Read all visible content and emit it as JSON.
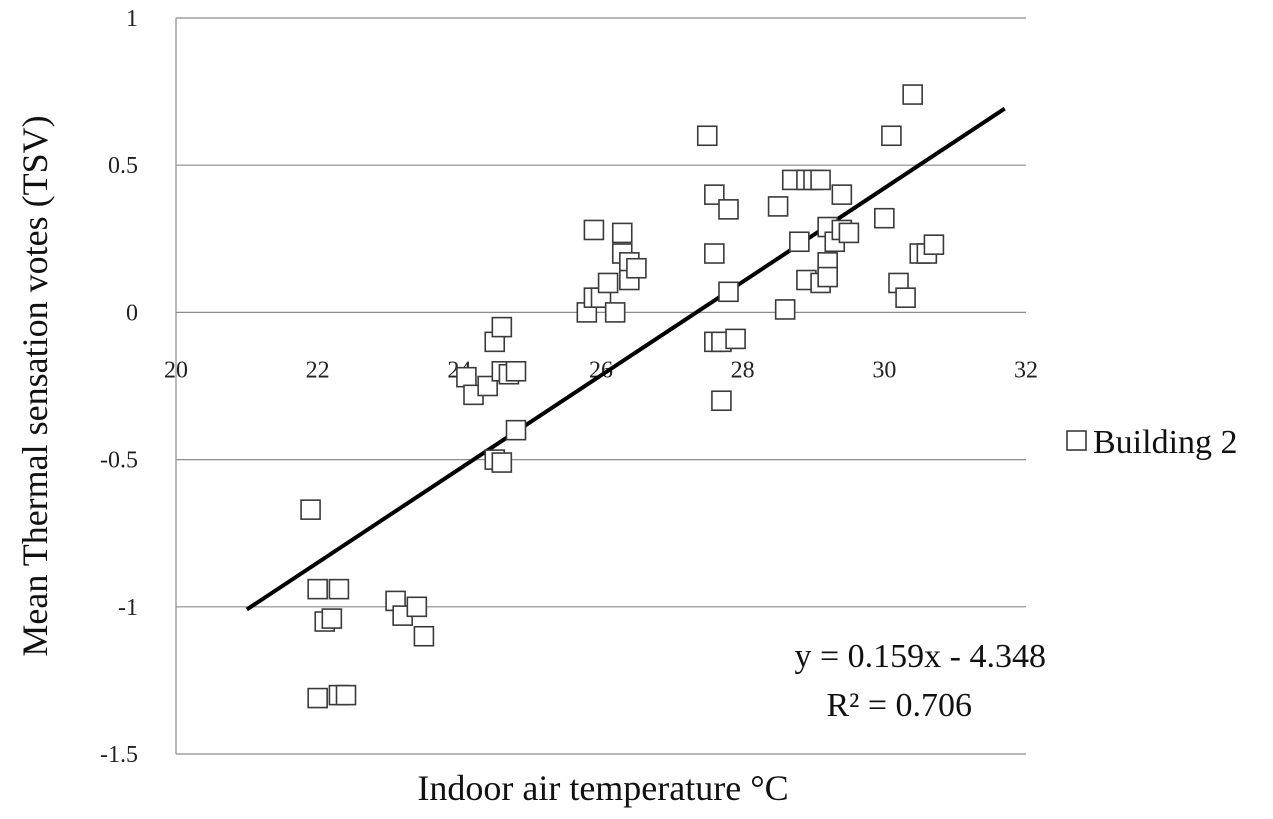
{
  "chart_data": {
    "type": "scatter",
    "title": "",
    "xlabel": "Indoor air temperature °C",
    "ylabel": "Mean Thermal sensation votes (TSV)",
    "xlim": [
      20,
      32
    ],
    "ylim": [
      -1.5,
      1
    ],
    "x_ticks": [
      "20",
      "22",
      "24",
      "26",
      "28",
      "30",
      "32"
    ],
    "y_ticks": [
      "1",
      "0.5",
      "0",
      "-0.5",
      "-1",
      "-1.5"
    ],
    "grid": true,
    "legend_position": "right",
    "series": [
      {
        "name": "Building 2",
        "marker": "open-square",
        "color": "#3a3a3a",
        "points": [
          [
            21.9,
            -0.67
          ],
          [
            22.0,
            -0.94
          ],
          [
            22.3,
            -0.94
          ],
          [
            22.1,
            -1.05
          ],
          [
            22.2,
            -1.04
          ],
          [
            22.0,
            -1.31
          ],
          [
            22.3,
            -1.3
          ],
          [
            22.4,
            -1.3
          ],
          [
            23.1,
            -0.98
          ],
          [
            23.2,
            -1.03
          ],
          [
            23.4,
            -1.0
          ],
          [
            23.5,
            -1.1
          ],
          [
            24.1,
            -0.22
          ],
          [
            24.2,
            -0.28
          ],
          [
            24.4,
            -0.25
          ],
          [
            24.5,
            -0.1
          ],
          [
            24.6,
            -0.05
          ],
          [
            24.6,
            -0.2
          ],
          [
            24.7,
            -0.21
          ],
          [
            24.8,
            -0.2
          ],
          [
            24.8,
            -0.4
          ],
          [
            24.5,
            -0.5
          ],
          [
            24.6,
            -0.51
          ],
          [
            25.8,
            0.0
          ],
          [
            25.9,
            0.28
          ],
          [
            25.9,
            0.05
          ],
          [
            26.0,
            0.05
          ],
          [
            26.1,
            0.1
          ],
          [
            26.2,
            0.0
          ],
          [
            26.3,
            0.27
          ],
          [
            26.3,
            0.2
          ],
          [
            26.4,
            0.17
          ],
          [
            26.4,
            0.11
          ],
          [
            26.5,
            0.15
          ],
          [
            27.5,
            0.6
          ],
          [
            27.6,
            0.4
          ],
          [
            27.6,
            0.2
          ],
          [
            27.6,
            -0.1
          ],
          [
            27.7,
            -0.1
          ],
          [
            27.7,
            -0.3
          ],
          [
            27.8,
            0.35
          ],
          [
            27.8,
            0.07
          ],
          [
            27.9,
            -0.09
          ],
          [
            28.5,
            0.36
          ],
          [
            28.6,
            0.01
          ],
          [
            28.7,
            0.45
          ],
          [
            28.8,
            0.24
          ],
          [
            28.9,
            0.45
          ],
          [
            28.9,
            0.11
          ],
          [
            29.0,
            0.45
          ],
          [
            29.1,
            0.45
          ],
          [
            29.1,
            0.1
          ],
          [
            29.2,
            0.17
          ],
          [
            29.2,
            0.12
          ],
          [
            29.2,
            0.29
          ],
          [
            29.3,
            0.24
          ],
          [
            29.4,
            0.4
          ],
          [
            29.4,
            0.28
          ],
          [
            29.5,
            0.27
          ],
          [
            30.0,
            0.32
          ],
          [
            30.1,
            0.6
          ],
          [
            30.2,
            0.1
          ],
          [
            30.3,
            0.05
          ],
          [
            30.4,
            0.74
          ],
          [
            30.5,
            0.2
          ],
          [
            30.6,
            0.2
          ],
          [
            30.7,
            0.23
          ]
        ]
      }
    ],
    "trendline": {
      "x_range": [
        21.0,
        31.7
      ],
      "slope": 0.159,
      "intercept": -4.348,
      "equation": "y = 0.159x - 4.348",
      "r2": "R² = 0.706"
    }
  }
}
